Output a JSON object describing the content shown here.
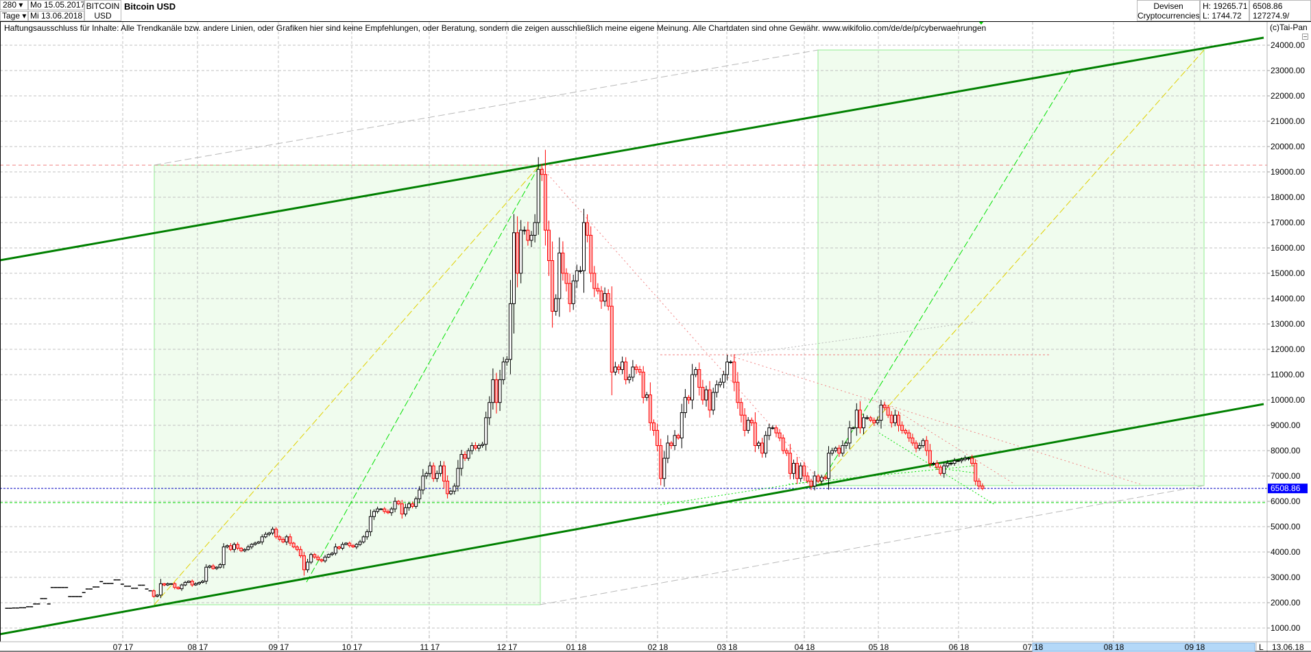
{
  "header": {
    "bars_count": "280 ▾",
    "period": "Tage ▾",
    "date_from": "Mo 15.05.2017",
    "date_to": "Mi 13.06.2018",
    "symbol_line1": "BITCOIN",
    "symbol_line2": "USD",
    "title": "Bitcoin USD",
    "market_line1": "Devisen",
    "market_line2": "Cryptocurrencies",
    "high": "H: 19265.71",
    "low": "L: 1744.72",
    "last": "6508.86",
    "volume": "127274.9/",
    "copyright": "(c)Tai-Pan",
    "disclaimer": "Haftungsausschluss für Inhalte: Alle Trendkanäle bzw. andere Linien, oder Grafiken hier sind keine Empfehlungen, oder Beratung, sondern die zeigen ausschließlich meine eigene Meinung. Alle Chartdaten sind ohne Gewähr.  www.wikifolio.com/de/de/p/cyberwaehrungen"
  },
  "chart_data": {
    "type": "candlestick",
    "title": "Bitcoin USD",
    "ylim": [
      500,
      24500
    ],
    "yticks": [
      "24000.00",
      "23000.00",
      "22000.00",
      "21000.00",
      "20000.00",
      "19000.00",
      "18000.00",
      "17000.00",
      "16000.00",
      "15000.00",
      "14000.00",
      "13000.00",
      "12000.00",
      "11000.00",
      "10000.00",
      "9000.00",
      "8000.00",
      "7000.00",
      "6000.00",
      "5000.00",
      "4000.00",
      "3000.00",
      "2000.00",
      "1000.00"
    ],
    "ytick_values": [
      24000,
      23000,
      22000,
      21000,
      20000,
      19000,
      18000,
      17000,
      16000,
      15000,
      14000,
      13000,
      12000,
      11000,
      10000,
      9000,
      8000,
      7000,
      6000,
      5000,
      4000,
      3000,
      2000,
      1000
    ],
    "xticks": [
      {
        "m": "07",
        "y": "17"
      },
      {
        "m": "08",
        "y": "17"
      },
      {
        "m": "09",
        "y": "17"
      },
      {
        "m": "10",
        "y": "17"
      },
      {
        "m": "11",
        "y": "17"
      },
      {
        "m": "12",
        "y": "17"
      },
      {
        "m": "01",
        "y": "18"
      },
      {
        "m": "02",
        "y": "18"
      },
      {
        "m": "03",
        "y": "18"
      },
      {
        "m": "04",
        "y": "18"
      },
      {
        "m": "05",
        "y": "18"
      },
      {
        "m": "06",
        "y": "18"
      },
      {
        "m": "07",
        "y": "18"
      },
      {
        "m": "08",
        "y": "18"
      },
      {
        "m": "09",
        "y": "18"
      }
    ],
    "last_price": 6508.86,
    "last_price_label": "6508.86",
    "high_line": 19265.71,
    "support_line": 5950,
    "end_date_label": "13.06.18",
    "scale_mode_label": "L",
    "pre_candle_closes": [
      1780,
      1780,
      1790,
      1790,
      1800,
      1800,
      1840,
      1840,
      1950,
      1950,
      2160,
      2160,
      1950,
      2600,
      2600,
      2600,
      2600,
      2600,
      2240,
      2240,
      2240,
      2240,
      2400,
      2540,
      2540,
      2620,
      2620,
      2830,
      2760,
      2760,
      2760,
      2900,
      2900,
      2730,
      2650,
      2650,
      2570,
      2570,
      2690,
      2690,
      2540,
      2470
    ],
    "candle_closes": [
      2250,
      2300,
      2750,
      2700,
      2750,
      2750,
      2600,
      2550,
      2700,
      2800,
      2850,
      2700,
      2750,
      2800,
      2850,
      3400,
      3450,
      3350,
      3400,
      3500,
      4200,
      4250,
      4100,
      4300,
      4150,
      4050,
      4100,
      4200,
      4300,
      4350,
      4400,
      4600,
      4700,
      4750,
      4900,
      4600,
      4500,
      4400,
      4600,
      4350,
      4200,
      4100,
      3850,
      3300,
      3600,
      3900,
      3800,
      3700,
      3650,
      3800,
      3900,
      3950,
      4200,
      4150,
      4300,
      4350,
      4250,
      4200,
      4300,
      4400,
      4600,
      4800,
      5400,
      5600,
      5700,
      5700,
      5600,
      5550,
      5700,
      6000,
      5900,
      5500,
      5750,
      5900,
      5800,
      6100,
      6450,
      7000,
      7100,
      7400,
      6900,
      7100,
      7400,
      6800,
      6300,
      6400,
      6600,
      7300,
      7850,
      7700,
      8000,
      8200,
      8100,
      8200,
      8250,
      9300,
      9900,
      10800,
      9900,
      10800,
      11500,
      11600,
      13800,
      16600,
      15000,
      16700,
      16700,
      16300,
      16500,
      17000,
      19100,
      18900,
      16700,
      15500,
      13500,
      14000,
      15800,
      15000,
      14600,
      13800,
      14700,
      15100,
      15100,
      17000,
      16500,
      15000,
      14400,
      14300,
      13900,
      14200,
      13700,
      11100,
      11300,
      11200,
      11500,
      10800,
      10900,
      11300,
      11200,
      11100,
      10100,
      10200,
      9100,
      8800,
      8200,
      6900,
      7700,
      8300,
      8200,
      8600,
      8500,
      9500,
      10100,
      10000,
      11000,
      11200,
      10500,
      10000,
      10400,
      9600,
      10300,
      10600,
      10700,
      11000,
      11500,
      11500,
      10700,
      9900,
      9400,
      8800,
      9200,
      9100,
      8200,
      8300,
      7900,
      8600,
      8900,
      8900,
      8700,
      8500,
      8000,
      7900,
      7100,
      7500,
      6900,
      7400,
      7000,
      6800,
      6600,
      7000,
      6800,
      6950,
      6900,
      7900,
      8000,
      8100,
      7900,
      8200,
      8300,
      8900,
      8900,
      9600,
      8900,
      9300,
      9300,
      9200,
      9100,
      9200,
      9800,
      9700,
      9400,
      9100,
      9400,
      9000,
      8800,
      8700,
      8500,
      8300,
      8100,
      8200,
      8400,
      8000,
      7500,
      7500,
      7350,
      7100,
      7400,
      7500,
      7500,
      7600,
      7600,
      7650,
      7700,
      7700,
      7500,
      6800,
      6600,
      6508.86
    ],
    "grid": true,
    "colors": {
      "up_body": "#ffffff",
      "up_border": "#000000",
      "down_body": "#ffb4b4",
      "down_border": "#ff0000",
      "channel": "#008000",
      "zone_fill": "#f0fcee",
      "zone_border": "#90ee90",
      "green_dash": "#00e000",
      "yellow_dash": "#e0d000",
      "red_dot": "#f08080",
      "gray_dash": "#b8b8b8",
      "last_line": "#0000c0",
      "support": "#00dd00",
      "future_bar": "#b4d8f8"
    }
  }
}
